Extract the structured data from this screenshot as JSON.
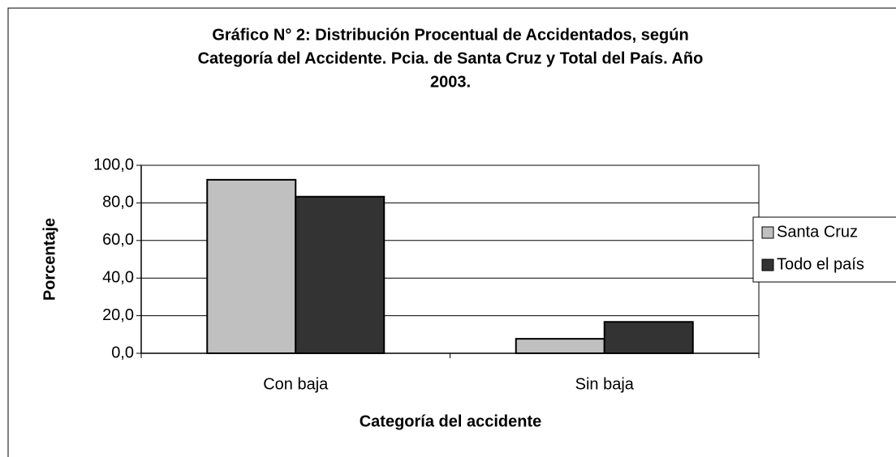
{
  "chart_data": {
    "type": "bar",
    "title": [
      "Gráfico N° 2: Distribución Procentual de Accidentados, según",
      "Categoría del Accidente. Pcia. de Santa Cruz y Total del País. Año",
      "2003."
    ],
    "x_label": "Categoría del accidente",
    "y_label": "Porcentaje",
    "categories": [
      "Con baja",
      "Sin baja"
    ],
    "series": [
      {
        "name": "Santa Cruz",
        "color": "#c0c0c0",
        "values": [
          92.3,
          7.7
        ]
      },
      {
        "name": "Todo el país",
        "color": "#333333",
        "values": [
          83.3,
          16.7
        ]
      }
    ],
    "ylim": [
      0,
      100
    ],
    "yticks": [
      {
        "value": 0,
        "label": "0,0"
      },
      {
        "value": 20,
        "label": "20,0"
      },
      {
        "value": 40,
        "label": "40,0"
      },
      {
        "value": 60,
        "label": "60,0"
      },
      {
        "value": 80,
        "label": "80,0"
      },
      {
        "value": 100,
        "label": "100,0"
      }
    ],
    "grid": true,
    "legend": "right"
  }
}
